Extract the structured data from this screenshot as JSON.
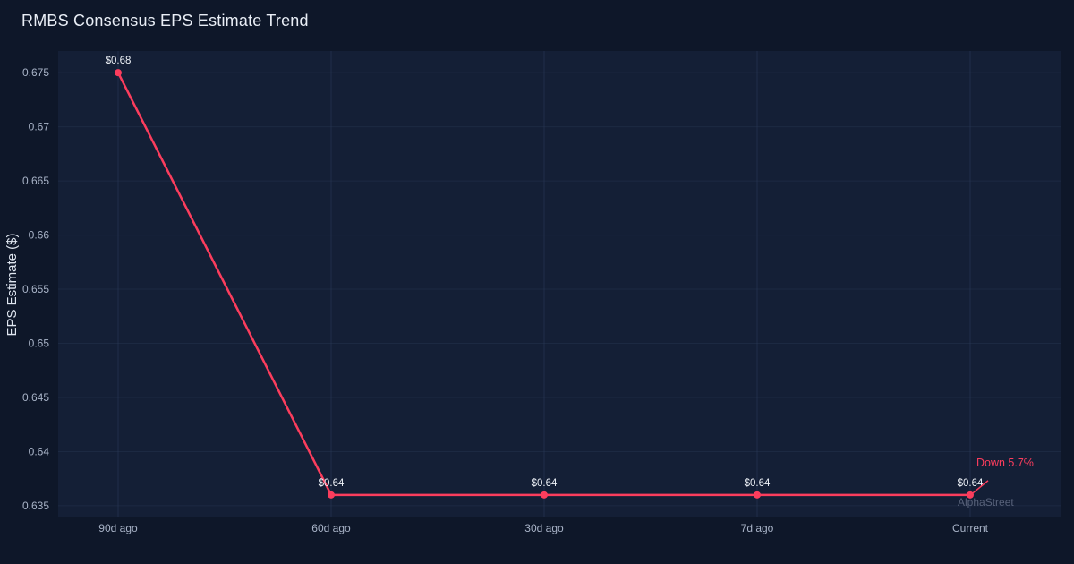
{
  "title": "RMBS Consensus EPS Estimate Trend",
  "watermark": "AlphaStreet",
  "chart_data": {
    "type": "line",
    "title": "RMBS Consensus EPS Estimate Trend",
    "xlabel": "",
    "ylabel": "EPS Estimate ($)",
    "categories": [
      "90d ago",
      "60d ago",
      "30d ago",
      "7d ago",
      "Current"
    ],
    "values": [
      0.675,
      0.636,
      0.636,
      0.636,
      0.636
    ],
    "point_labels": [
      "$0.68",
      "$0.64",
      "$0.64",
      "$0.64",
      "$0.64"
    ],
    "ylim": [
      0.634,
      0.677
    ],
    "ytick_values": [
      0.635,
      0.64,
      0.645,
      0.65,
      0.655,
      0.66,
      0.665,
      0.67,
      0.675
    ],
    "ytick_labels": [
      "0.635",
      "0.64",
      "0.645",
      "0.65",
      "0.655",
      "0.66",
      "0.665",
      "0.67",
      "0.675"
    ],
    "annotation": "Down 5.7%",
    "grid": true,
    "legend": false
  },
  "colors": {
    "background": "#0e1729",
    "plot_background": "#141f36",
    "grid": "#2a3856",
    "title_text": "#e9eef6",
    "tick_text": "#a8b3c7",
    "point_label_text": "#eef2f8",
    "accent": "#fb3d5d",
    "watermark": "#58627a"
  }
}
